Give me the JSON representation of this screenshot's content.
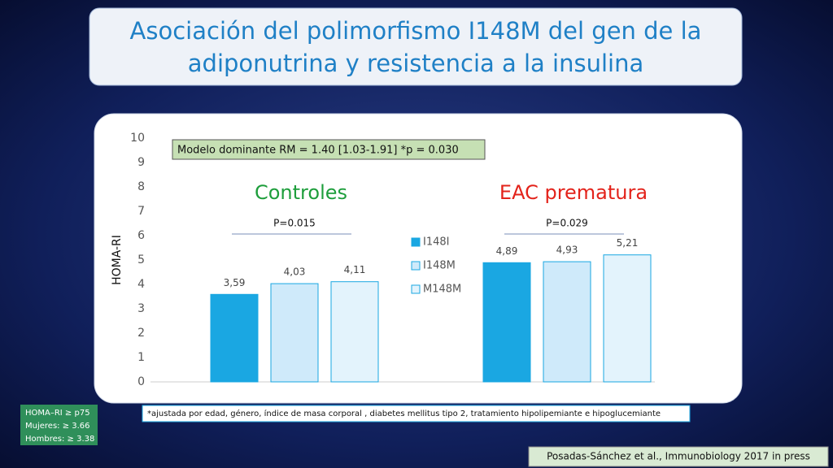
{
  "title": [
    "Asociación del polimorfismo I148M del gen de la",
    "adiponutrina y resistencia a la insulina"
  ],
  "chart_data": {
    "type": "bar",
    "categories": [
      "Controles",
      "EAC prematura"
    ],
    "category_colors": [
      "#1e9e3c",
      "#e3231b"
    ],
    "series": [
      {
        "name": "I148I",
        "color": "#1aa7e2",
        "values": [
          3.59,
          4.89
        ],
        "value_labels": [
          "3,59",
          "4,89"
        ]
      },
      {
        "name": "I148M",
        "color": "#cfeafa",
        "values": [
          4.03,
          4.93
        ],
        "value_labels": [
          "4,03",
          "4,93"
        ]
      },
      {
        "name": "M148M",
        "color": "#e3f3fc",
        "values": [
          4.11,
          5.21
        ],
        "value_labels": [
          "4,11",
          "5,21"
        ]
      }
    ],
    "y_label": "HOMA-RI",
    "ylim": [
      0,
      10
    ],
    "yticks": [
      0,
      1,
      2,
      3,
      4,
      5,
      6,
      7,
      8,
      9,
      10
    ],
    "note": "Modelo dominante   RM = 1.40 [1.03-1.91] *p = 0.030",
    "group_annotations": [
      "P=0.015",
      "P=0.029"
    ]
  },
  "footnote": "*ajustada por edad, género, índice de masa corporal , diabetes mellitus tipo 2, tratamiento hipolipemiante e hipoglucemiante",
  "criteria": [
    "HOMA–RI ≥ p75",
    "Mujeres: ≥ 3.66",
    "Hombres: ≥ 3.38"
  ],
  "citation": "Posadas-Sánchez et al., Immunobiology 2017 in press"
}
